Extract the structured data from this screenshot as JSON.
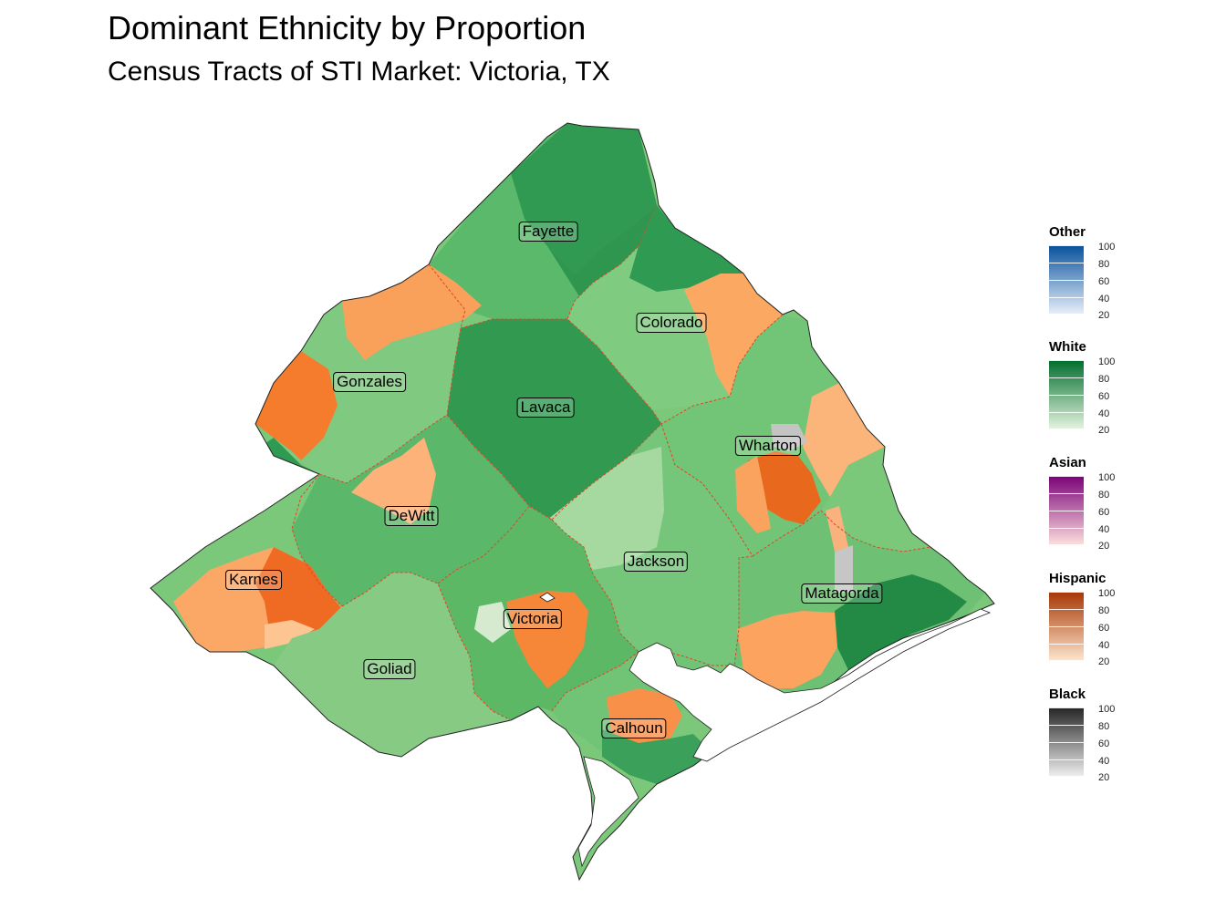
{
  "title": "Dominant Ethnicity by Proportion",
  "subtitle": "Census Tracts of STI Market: Victoria, TX",
  "counties": [
    {
      "name": "Fayette"
    },
    {
      "name": "Colorado"
    },
    {
      "name": "Gonzales"
    },
    {
      "name": "Lavaca"
    },
    {
      "name": "Wharton"
    },
    {
      "name": "DeWitt"
    },
    {
      "name": "Jackson"
    },
    {
      "name": "Karnes"
    },
    {
      "name": "Matagorda"
    },
    {
      "name": "Victoria"
    },
    {
      "name": "Goliad"
    },
    {
      "name": "Calhoun"
    }
  ],
  "legends": [
    {
      "title": "Other",
      "low": "#e8f0fa",
      "high": "#08519c",
      "ticks": [
        "100",
        "80",
        "60",
        "40",
        "20"
      ]
    },
    {
      "title": "White",
      "low": "#e5f5e0",
      "high": "#006d2c",
      "ticks": [
        "100",
        "80",
        "60",
        "40",
        "20"
      ]
    },
    {
      "title": "Asian",
      "low": "#fde0dd",
      "high": "#7a0177",
      "ticks": [
        "100",
        "80",
        "60",
        "40",
        "20"
      ]
    },
    {
      "title": "Hispanic",
      "low": "#fee6ce",
      "high": "#a63603",
      "ticks": [
        "100",
        "80",
        "60",
        "40",
        "20"
      ]
    },
    {
      "title": "Black",
      "low": "#f0f0f0",
      "high": "#252525",
      "ticks": [
        "100",
        "80",
        "60",
        "40",
        "20"
      ]
    }
  ]
}
